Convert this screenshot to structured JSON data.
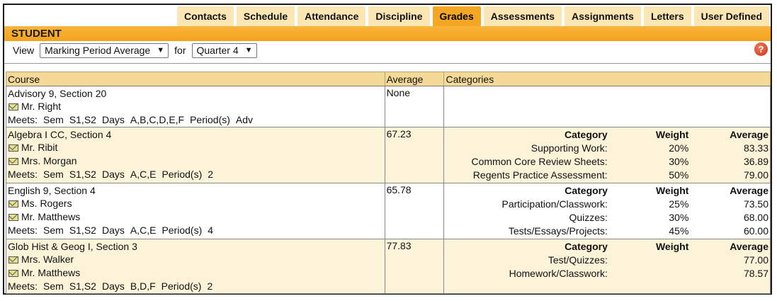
{
  "tabs": [
    {
      "label": "Contacts",
      "active": false
    },
    {
      "label": "Schedule",
      "active": false
    },
    {
      "label": "Attendance",
      "active": false
    },
    {
      "label": "Discipline",
      "active": false
    },
    {
      "label": "Grades",
      "active": true
    },
    {
      "label": "Assessments",
      "active": false
    },
    {
      "label": "Assignments",
      "active": false
    },
    {
      "label": "Letters",
      "active": false
    },
    {
      "label": "User Defined",
      "active": false
    }
  ],
  "header": {
    "title": "STUDENT"
  },
  "controls": {
    "view_label": "View",
    "view_value": "Marking Period Average",
    "for_label": "for",
    "period_value": "Quarter 4",
    "help_icon": "?"
  },
  "table": {
    "columns": {
      "course": "Course",
      "average": "Average",
      "categories": "Categories"
    },
    "rows": [
      {
        "course": "Advisory 9,  Section 20",
        "teachers": [
          "Mr. Right"
        ],
        "meets": {
          "label": "Meets:",
          "sem_label": "Sem",
          "sem": "S1,S2",
          "days_label": "Days",
          "days": "A,B,C,D,E,F",
          "period_label": "Period(s)",
          "period": "Adv"
        },
        "average": "None",
        "categories": null
      },
      {
        "course": "Algebra I CC,  Section 4",
        "teachers": [
          "Mr. Ribit",
          "Mrs. Morgan"
        ],
        "meets": {
          "label": "Meets:",
          "sem_label": "Sem",
          "sem": "S1,S2",
          "days_label": "Days",
          "days": "A,C,E",
          "period_label": "Period(s)",
          "period": "2"
        },
        "average": "67.23",
        "categories": {
          "headers": [
            "Category",
            "Weight",
            "Average"
          ],
          "items": [
            {
              "name": "Supporting Work:",
              "weight": "20%",
              "average": "83.33"
            },
            {
              "name": "Common Core Review Sheets:",
              "weight": "30%",
              "average": "36.89"
            },
            {
              "name": "Regents Practice Assessment:",
              "weight": "50%",
              "average": "79.00"
            }
          ]
        }
      },
      {
        "course": "English 9,  Section 4",
        "teachers": [
          "Ms. Rogers",
          "Mr. Matthews"
        ],
        "meets": {
          "label": "Meets:",
          "sem_label": "Sem",
          "sem": "S1,S2",
          "days_label": "Days",
          "days": "A,C,E",
          "period_label": "Period(s)",
          "period": "4"
        },
        "average": "65.78",
        "categories": {
          "headers": [
            "Category",
            "Weight",
            "Average"
          ],
          "items": [
            {
              "name": "Participation/Classwork:",
              "weight": "25%",
              "average": "73.50"
            },
            {
              "name": "Quizzes:",
              "weight": "30%",
              "average": "68.00"
            },
            {
              "name": "Tests/Essays/Projects:",
              "weight": "45%",
              "average": "60.00"
            }
          ]
        }
      },
      {
        "course": "Glob Hist & Geog I,  Section 3",
        "teachers": [
          "Mrs. Walker",
          "Mr. Matthews"
        ],
        "meets": {
          "label": "Meets:",
          "sem_label": "Sem",
          "sem": "S1,S2",
          "days_label": "Days",
          "days": "B,D,F",
          "period_label": "Period(s)",
          "period": "2"
        },
        "average": "77.83",
        "categories": {
          "headers": [
            "Category",
            "Weight",
            "Average"
          ],
          "items": [
            {
              "name": "Test/Quizzes:",
              "weight": "",
              "average": "77.00"
            },
            {
              "name": "Homework/Classwork:",
              "weight": "",
              "average": "78.57"
            }
          ]
        }
      }
    ]
  }
}
